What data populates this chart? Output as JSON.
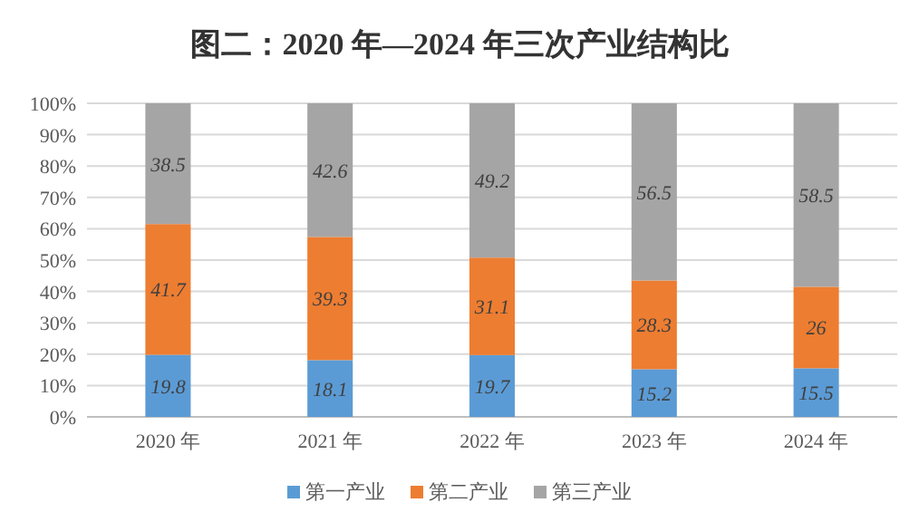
{
  "chart_data": {
    "type": "bar",
    "title": "图二：2020 年—2024 年三次产业结构比",
    "stacked": true,
    "categories": [
      "2020 年",
      "2021 年",
      "2022 年",
      "2023 年",
      "2024 年"
    ],
    "series": [
      {
        "name": "第一产业",
        "color": "#5b9bd5",
        "values": [
          19.8,
          18.1,
          19.7,
          15.2,
          15.5
        ]
      },
      {
        "name": "第二产业",
        "color": "#ed7d31",
        "values": [
          41.7,
          39.3,
          31.1,
          28.3,
          26
        ]
      },
      {
        "name": "第三产业",
        "color": "#a5a5a5",
        "values": [
          38.5,
          42.6,
          49.2,
          56.5,
          58.5
        ]
      }
    ],
    "ylim": [
      0,
      100
    ],
    "yticks": [
      {
        "value": 0,
        "label": "0%"
      },
      {
        "value": 10,
        "label": "10%"
      },
      {
        "value": 20,
        "label": "20%"
      },
      {
        "value": 30,
        "label": "30%"
      },
      {
        "value": 40,
        "label": "40%"
      },
      {
        "value": 50,
        "label": "50%"
      },
      {
        "value": 60,
        "label": "60%"
      },
      {
        "value": 70,
        "label": "70%"
      },
      {
        "value": 80,
        "label": "80%"
      },
      {
        "value": 90,
        "label": "90%"
      },
      {
        "value": 100,
        "label": "100%"
      }
    ],
    "grid": "y",
    "legend": "bottom",
    "data_labels": true
  }
}
